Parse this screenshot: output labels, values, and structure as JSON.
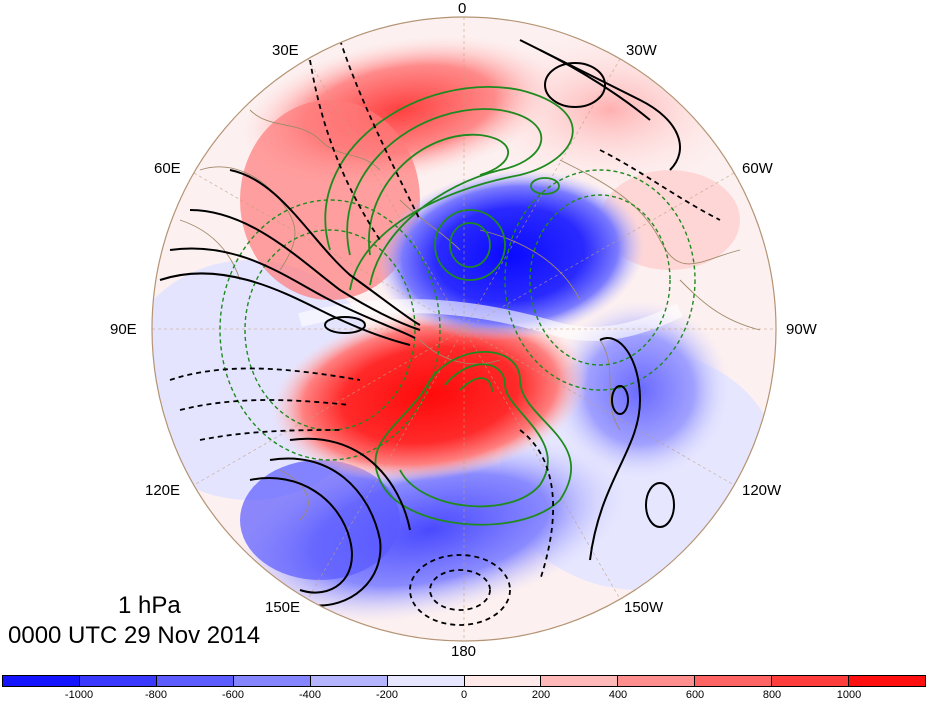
{
  "title": {
    "level": "1 hPa",
    "time": "0000 UTC 29 Nov 2014"
  },
  "longitude_labels": [
    "0",
    "30W",
    "60W",
    "90W",
    "120W",
    "150W",
    "180",
    "150E",
    "120E",
    "90E",
    "60E",
    "30E"
  ],
  "colorbar": {
    "colors": [
      "#1414ff",
      "#3a3aff",
      "#5c5cff",
      "#8585ff",
      "#b4b4ff",
      "#e6e6ff",
      "#ffe9e9",
      "#ffb9b9",
      "#ff8e8e",
      "#ff6464",
      "#ff3d3d",
      "#ff0f0f"
    ],
    "labels": [
      "-1000",
      "-800",
      "-600",
      "-400",
      "-200",
      "0",
      "200",
      "400",
      "600",
      "800",
      "1000"
    ]
  },
  "colors": {
    "black_contour": "#000000",
    "green_contour": "#1f8a1f",
    "coastline": "#a08a6a"
  }
}
